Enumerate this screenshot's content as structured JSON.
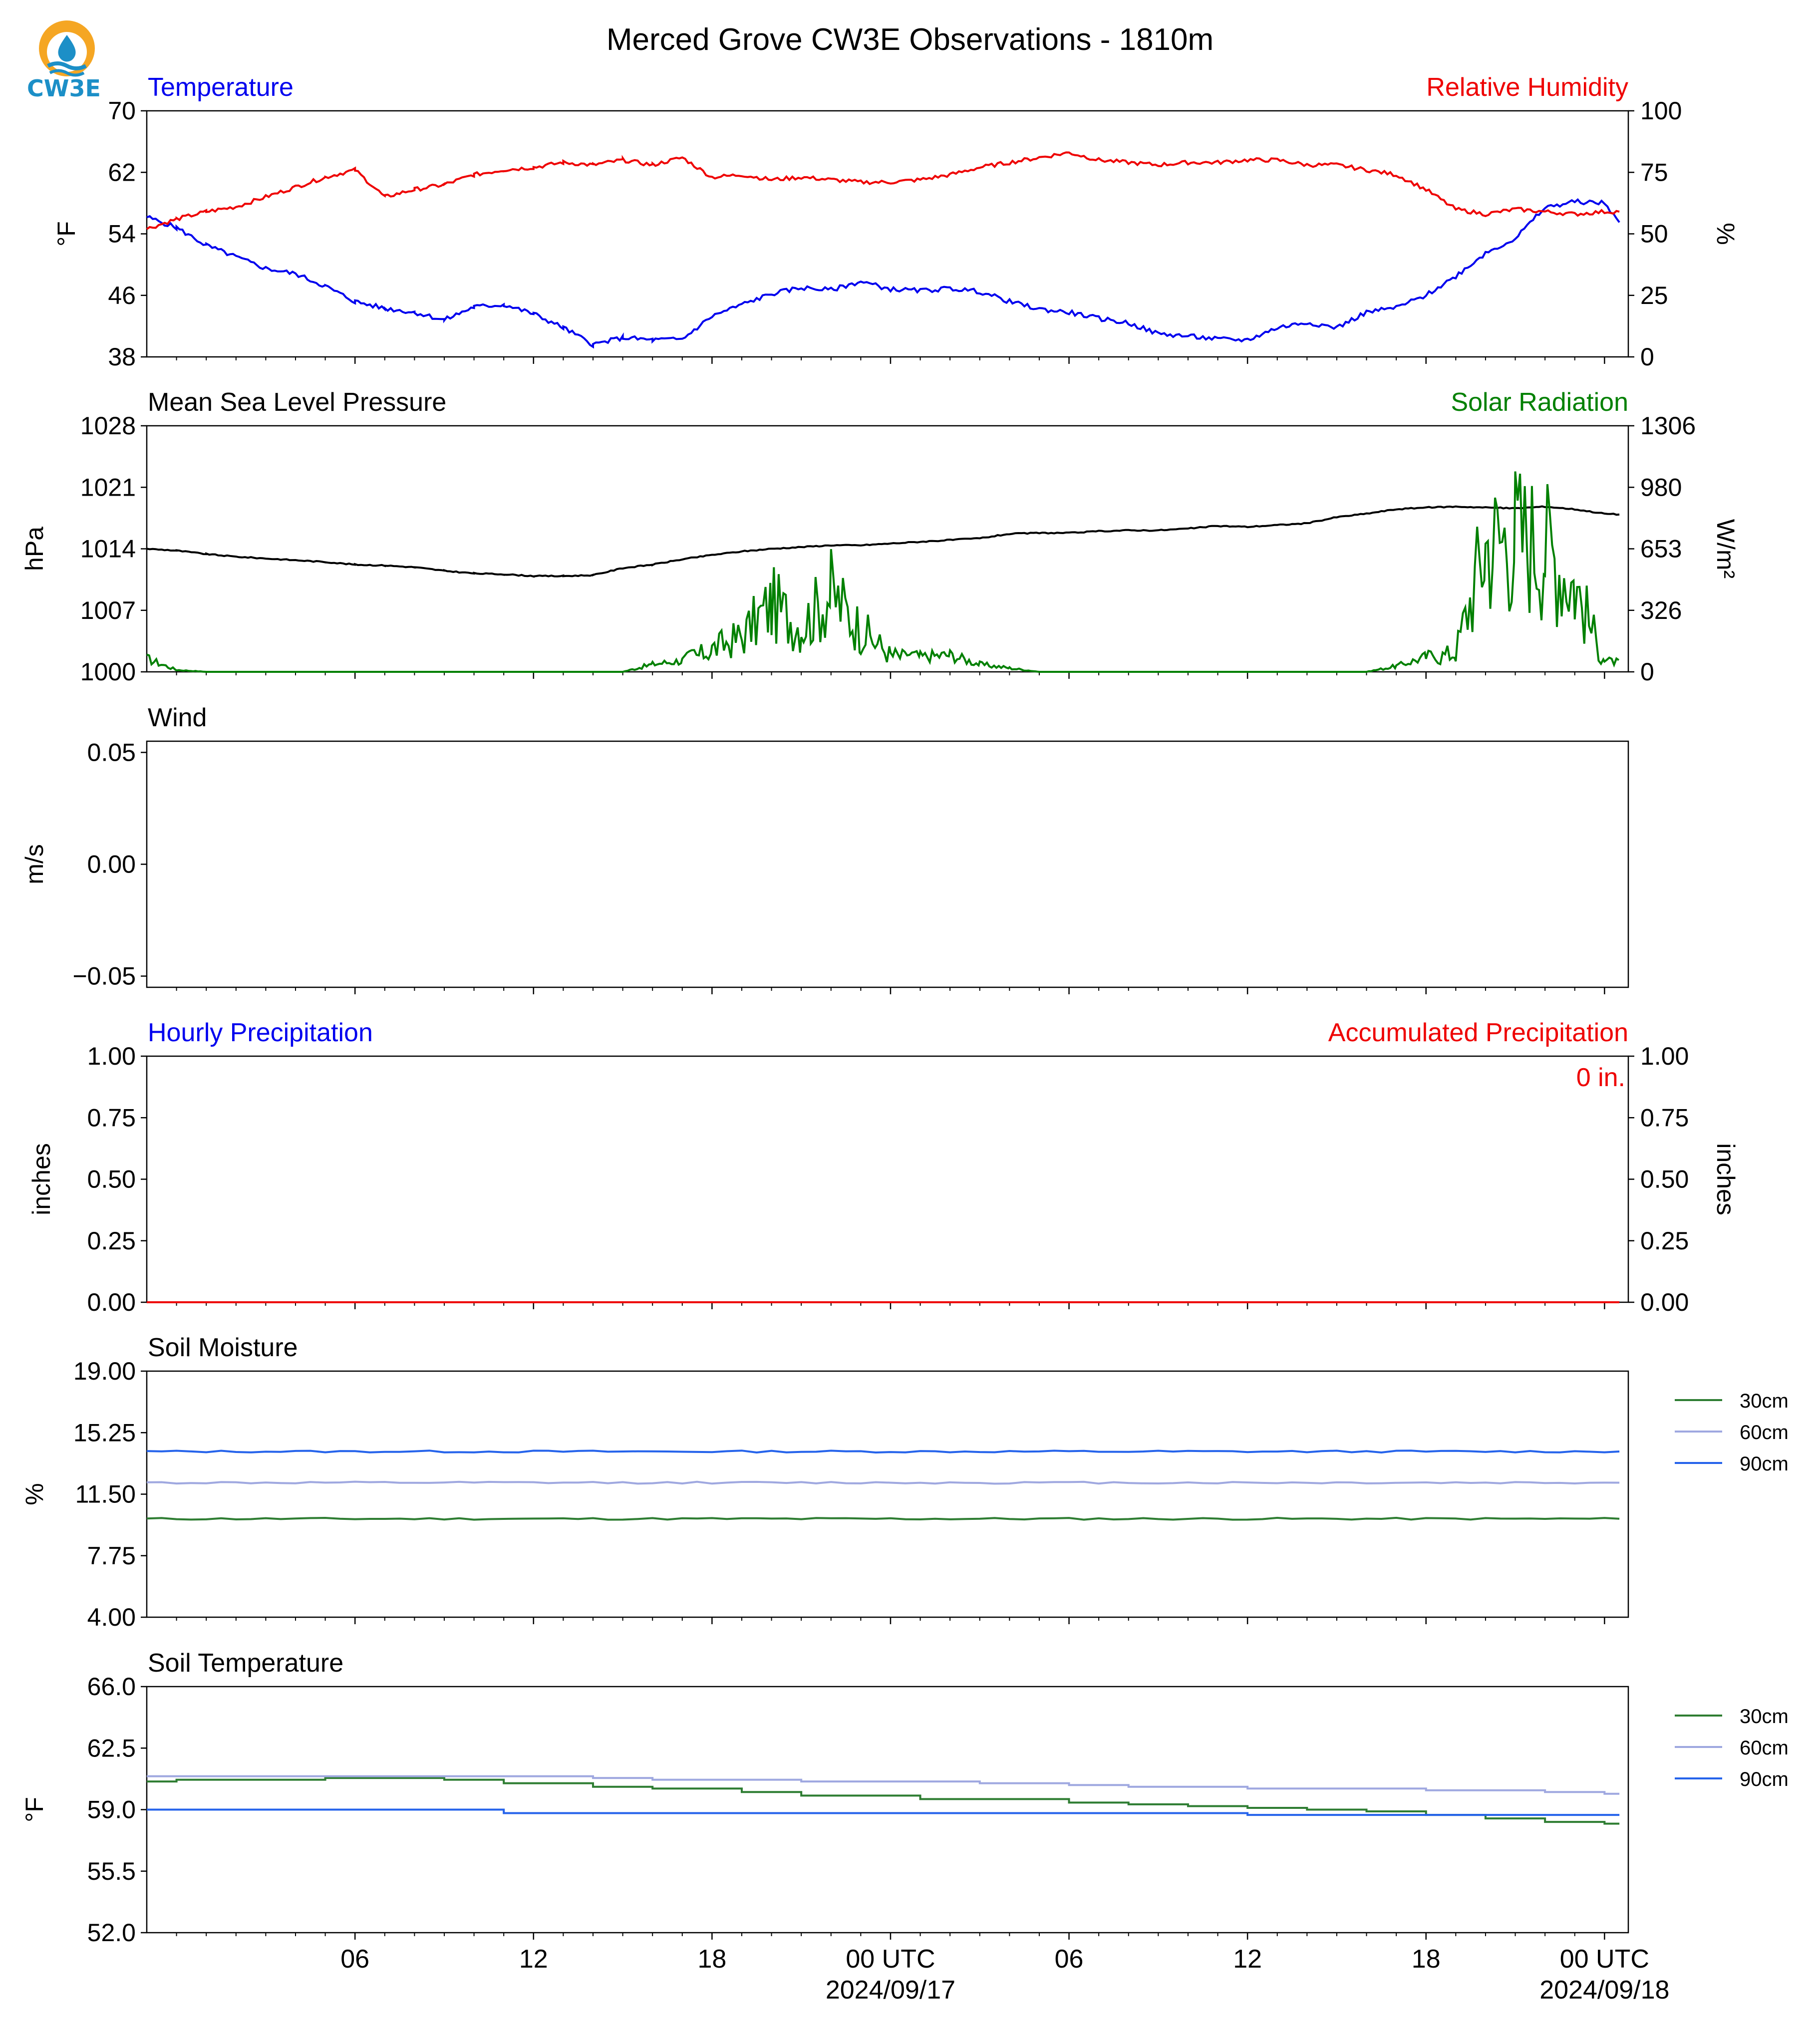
{
  "logo": {
    "text": "CW3E"
  },
  "figure_title": "Merced Grove CW3E Observations - 1810m",
  "x_axis": {
    "tick_labels": [
      "06",
      "12",
      "18",
      "00 UTC",
      "06",
      "12",
      "18",
      "00 UTC"
    ],
    "date_labels": [
      "2024/09/17",
      "2024/09/18"
    ]
  },
  "colors": {
    "temperature": "#0000ee",
    "humidity": "#ee0000",
    "pressure": "#000000",
    "solar": "#008000",
    "precip_hourly": "#0000ee",
    "precip_accum": "#ee0000",
    "soil_30": "#2e7d32",
    "soil_60": "#9fa8e0",
    "soil_90": "#2563eb"
  },
  "chart_data": [
    {
      "panel": "temperature-humidity",
      "type": "line",
      "left_title": "Temperature",
      "right_title": "Relative Humidity",
      "ylabel": "°F",
      "ylabel_right": "%",
      "ylim": [
        38,
        70
      ],
      "yticks": [
        "38",
        "46",
        "54",
        "62",
        "70"
      ],
      "ylim_right": [
        0,
        100
      ],
      "yticks_right": [
        "0",
        "25",
        "50",
        "75",
        "100"
      ],
      "x_hours": [
        -1,
        0,
        1,
        2,
        3,
        4,
        5,
        6,
        7,
        8,
        9,
        10,
        11,
        12,
        13,
        14,
        15,
        16,
        17,
        18,
        19,
        20,
        21,
        22,
        23,
        24,
        25,
        26,
        27,
        28,
        29,
        30,
        31,
        32,
        33,
        34,
        35,
        36,
        37,
        38,
        39,
        40,
        41,
        42,
        43,
        44,
        45,
        46,
        47,
        48,
        48.5
      ],
      "series": [
        {
          "name": "Temperature",
          "axis": "left",
          "values": [
            56.2,
            54.8,
            52.5,
            51.0,
            49.5,
            48.8,
            47.2,
            45.2,
            44.3,
            43.8,
            42.8,
            44.5,
            44.8,
            43.6,
            41.8,
            39.6,
            40.5,
            40.2,
            40.3,
            43.3,
            44.8,
            46.2,
            47.0,
            46.7,
            47.8,
            46.8,
            46.6,
            46.9,
            46.5,
            45.2,
            44.2,
            43.8,
            43.0,
            42.4,
            41.0,
            40.7,
            40.3,
            40.2,
            41.8,
            42.5,
            41.8,
            43.8,
            44.4,
            46.0,
            48.5,
            51.5,
            53.4,
            57.4,
            58.2,
            58.0,
            55.5
          ]
        },
        {
          "name": "Relative Humidity",
          "axis": "right",
          "values": [
            52,
            56,
            59,
            61,
            65,
            69,
            73,
            76,
            65,
            68,
            70,
            74,
            76,
            77,
            79,
            78,
            80,
            78,
            81,
            73,
            74,
            72,
            73,
            72,
            71,
            71,
            72,
            74,
            77,
            79,
            81,
            83,
            80,
            79,
            78,
            79,
            79,
            80,
            80,
            78,
            78,
            76,
            74,
            68,
            60,
            58,
            60,
            59,
            58,
            59,
            59
          ]
        }
      ]
    },
    {
      "panel": "pressure-solar",
      "type": "line",
      "left_title": "Mean Sea Level Pressure",
      "right_title": "Solar Radiation",
      "ylabel": "hPa",
      "ylabel_right": "W/m²",
      "ylim": [
        1000,
        1028
      ],
      "yticks": [
        "1000",
        "1007",
        "1014",
        "1021",
        "1028"
      ],
      "ylim_right": [
        0,
        1306
      ],
      "yticks_right": [
        "0",
        "326",
        "653",
        "980",
        "1306"
      ],
      "x_hours": [
        -1,
        0,
        1,
        2,
        3,
        4,
        5,
        6,
        7,
        8,
        9,
        10,
        11,
        12,
        13,
        14,
        15,
        16,
        17,
        18,
        19,
        20,
        21,
        22,
        23,
        24,
        25,
        26,
        27,
        28,
        29,
        30,
        31,
        32,
        33,
        34,
        35,
        36,
        37,
        38,
        39,
        40,
        41,
        42,
        43,
        44,
        45,
        46,
        47,
        48,
        48.5
      ],
      "series": [
        {
          "name": "Mean Sea Level Pressure",
          "axis": "left",
          "values": [
            1014.0,
            1013.8,
            1013.4,
            1013.1,
            1012.9,
            1012.7,
            1012.5,
            1012.2,
            1012.1,
            1011.9,
            1011.5,
            1011.2,
            1011.1,
            1010.9,
            1010.9,
            1011.0,
            1011.8,
            1012.2,
            1012.8,
            1013.3,
            1013.7,
            1014.0,
            1014.2,
            1014.4,
            1014.4,
            1014.6,
            1014.8,
            1015.0,
            1015.2,
            1015.7,
            1015.8,
            1015.8,
            1016.0,
            1016.1,
            1016.1,
            1016.3,
            1016.6,
            1016.5,
            1016.7,
            1016.9,
            1017.6,
            1018.0,
            1018.5,
            1018.7,
            1018.8,
            1018.7,
            1018.6,
            1018.8,
            1018.5,
            1018.0,
            1017.9
          ]
        },
        {
          "name": "Solar Radiation",
          "axis": "right",
          "values": [
            70,
            10,
            0,
            0,
            0,
            0,
            0,
            0,
            0,
            0,
            0,
            0,
            0,
            0,
            0,
            0,
            0,
            40,
            60,
            160,
            250,
            480,
            320,
            560,
            300,
            120,
            80,
            90,
            40,
            20,
            0,
            0,
            0,
            0,
            0,
            0,
            0,
            0,
            0,
            0,
            0,
            0,
            30,
            80,
            140,
            900,
            980,
            900,
            620,
            60,
            50
          ]
        }
      ]
    },
    {
      "panel": "wind",
      "type": "line",
      "left_title": "Wind",
      "ylabel": "m/s",
      "ylim": [
        -0.055,
        0.055
      ],
      "yticks": [
        "−0.05",
        "0.00",
        "0.05"
      ],
      "series": []
    },
    {
      "panel": "precipitation",
      "type": "line",
      "left_title": "Hourly Precipitation",
      "right_title": "Accumulated Precipitation",
      "ylabel": "inches",
      "ylabel_right": "inches",
      "ylim": [
        0,
        1
      ],
      "yticks": [
        "0.00",
        "0.25",
        "0.50",
        "0.75",
        "1.00"
      ],
      "ylim_right": [
        0,
        1
      ],
      "yticks_right": [
        "0.00",
        "0.25",
        "0.50",
        "0.75",
        "1.00"
      ],
      "annotation": "0 in.",
      "x_hours": [
        -1,
        48.5
      ],
      "series": [
        {
          "name": "Hourly Precipitation",
          "axis": "left",
          "values": [
            0,
            0
          ]
        },
        {
          "name": "Accumulated Precipitation",
          "axis": "right",
          "values": [
            0,
            0
          ]
        }
      ]
    },
    {
      "panel": "soil-moisture",
      "type": "line",
      "left_title": "Soil Moisture",
      "ylabel": "%",
      "ylim": [
        4,
        19
      ],
      "yticks": [
        "4.00",
        "7.75",
        "11.50",
        "15.25",
        "19.00"
      ],
      "x_hours": [
        -1,
        48.5
      ],
      "series": [
        {
          "name": "30cm",
          "values": [
            10.0,
            10.0
          ]
        },
        {
          "name": "60cm",
          "values": [
            12.2,
            12.2
          ]
        },
        {
          "name": "90cm",
          "values": [
            14.1,
            14.1
          ]
        }
      ]
    },
    {
      "panel": "soil-temperature",
      "type": "line",
      "left_title": "Soil Temperature",
      "ylabel": "°F",
      "ylim": [
        52,
        66
      ],
      "yticks": [
        "52.0",
        "55.5",
        "59.0",
        "62.5",
        "66.0"
      ],
      "x_hours": [
        -1,
        0,
        4,
        5,
        8,
        9,
        11,
        13,
        14,
        16,
        19,
        21,
        25,
        27,
        30,
        32,
        34,
        36,
        38,
        40,
        42,
        44,
        46,
        48,
        48.5
      ],
      "series": [
        {
          "name": "30cm",
          "values": [
            60.6,
            60.7,
            60.7,
            60.8,
            60.8,
            60.7,
            60.5,
            60.5,
            60.3,
            60.2,
            60.0,
            59.8,
            59.6,
            59.6,
            59.4,
            59.3,
            59.2,
            59.1,
            59.0,
            58.9,
            58.7,
            58.5,
            58.3,
            58.2,
            58.2
          ]
        },
        {
          "name": "60cm",
          "values": [
            60.9,
            60.9,
            60.9,
            60.9,
            60.9,
            60.9,
            60.9,
            60.9,
            60.8,
            60.7,
            60.7,
            60.6,
            60.6,
            60.5,
            60.4,
            60.3,
            60.3,
            60.2,
            60.2,
            60.2,
            60.1,
            60.1,
            60.0,
            59.9,
            59.9
          ]
        },
        {
          "name": "90cm",
          "values": [
            59.0,
            59.0,
            59.0,
            59.0,
            59.0,
            59.0,
            58.8,
            58.8,
            58.8,
            58.8,
            58.8,
            58.8,
            58.8,
            58.8,
            58.8,
            58.8,
            58.8,
            58.7,
            58.7,
            58.7,
            58.7,
            58.7,
            58.7,
            58.7,
            58.7
          ]
        }
      ]
    }
  ]
}
